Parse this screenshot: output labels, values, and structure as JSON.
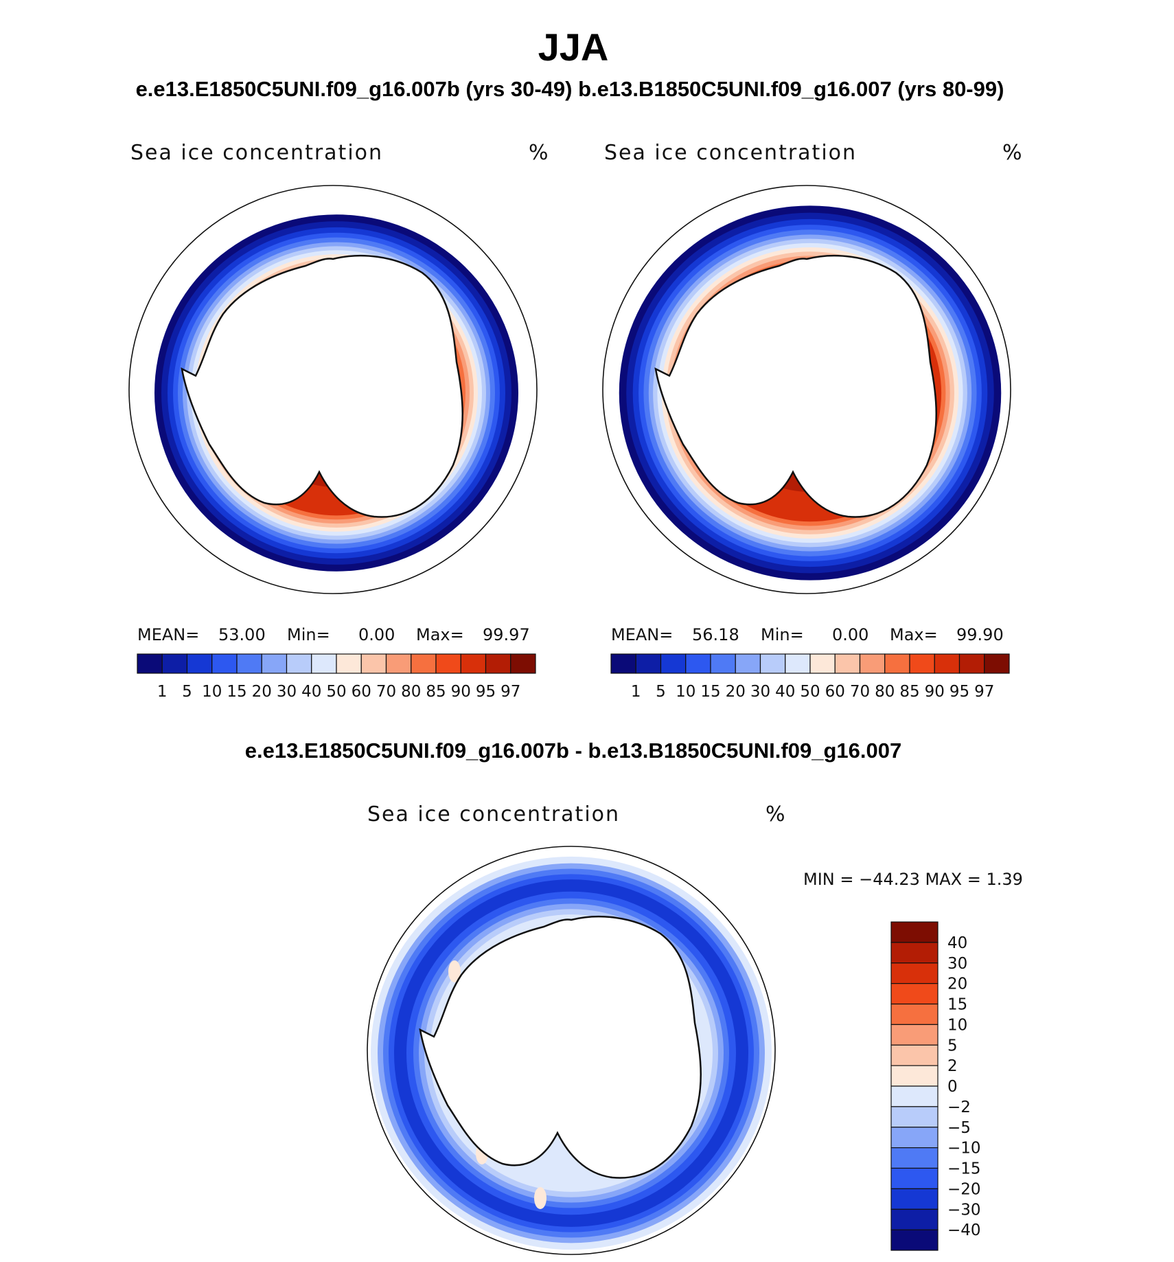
{
  "chart_data": {
    "type": "heatmap",
    "title": "JJA",
    "subtitle_top": "e.e13.E1850C5UNI.f09_g16.007b (yrs 30-49)  b.e13.B1850C5UNI.f09_g16.007 (yrs 80-99)",
    "subtitle_diff": "e.e13.E1850C5UNI.f09_g16.007b - b.e13.B1850C5UNI.f09_g16.007",
    "panels": [
      {
        "variable": "Sea ice concentration",
        "units": "%",
        "mean_label": "MEAN=",
        "mean": "53.00",
        "min_label": "Min=",
        "min": "0.00",
        "max_label": "Max=",
        "max": "99.97",
        "ice_extent_scale": 1.0
      },
      {
        "variable": "Sea ice concentration",
        "units": "%",
        "mean_label": "MEAN=",
        "mean": "56.18",
        "min_label": "Min=",
        "min": "0.00",
        "max_label": "Max=",
        "max": "99.90",
        "ice_extent_scale": 1.05
      }
    ],
    "levels": [
      "1",
      "5",
      "10",
      "15",
      "20",
      "30",
      "40",
      "50",
      "60",
      "70",
      "80",
      "85",
      "90",
      "95",
      "97"
    ],
    "colors": [
      "#0a0a78",
      "#0d1ea6",
      "#1538d4",
      "#2d58f0",
      "#4f7af5",
      "#87a6f8",
      "#b8ccfa",
      "#dde8fc",
      "#fde8d9",
      "#fbc5aa",
      "#f99c77",
      "#f6703f",
      "#f04a1a",
      "#d8300a",
      "#b31d05",
      "#7d0d02"
    ],
    "diff": {
      "variable": "Sea ice concentration",
      "units": "%",
      "stats_text": "MIN = −44.23 MAX =    1.39",
      "min": -44.23,
      "max": 1.39,
      "levels": [
        "40",
        "30",
        "20",
        "15",
        "10",
        "5",
        "2",
        "0",
        "−2",
        "−5",
        "−10",
        "−15",
        "−20",
        "−30",
        "−40"
      ],
      "colors": [
        "#7d0d02",
        "#b31d05",
        "#d8300a",
        "#f04a1a",
        "#f6703f",
        "#f99c77",
        "#fbc5aa",
        "#fde8d9",
        "#dde8fc",
        "#b8ccfa",
        "#87a6f8",
        "#4f7af5",
        "#2d58f0",
        "#1538d4",
        "#0d1ea6",
        "#0a0a78"
      ]
    }
  }
}
